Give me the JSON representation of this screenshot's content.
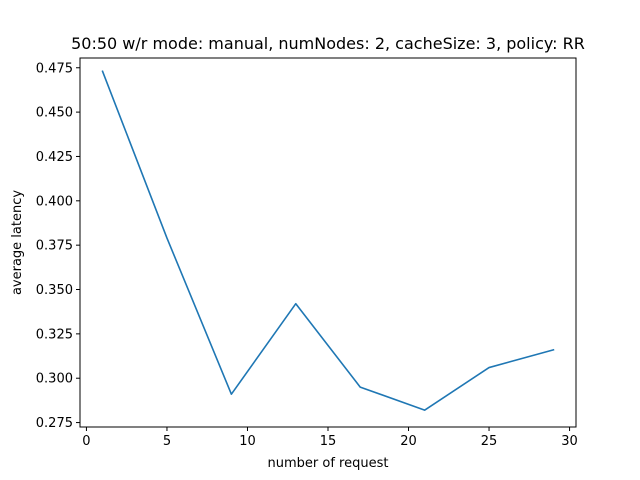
{
  "chart_data": {
    "type": "line",
    "title": "50:50 w/r mode: manual, numNodes: 2, cacheSize: 3, policy: RR",
    "xlabel": "number of request",
    "ylabel": "average latency",
    "xlim": [
      -0.4,
      30.4
    ],
    "ylim": [
      0.2725,
      0.4805
    ],
    "xticks": [
      0,
      5,
      10,
      15,
      20,
      25,
      30
    ],
    "yticks": [
      0.275,
      0.3,
      0.325,
      0.35,
      0.375,
      0.4,
      0.425,
      0.45,
      0.475
    ],
    "ytick_labels": [
      "0.275",
      "0.300",
      "0.325",
      "0.350",
      "0.375",
      "0.400",
      "0.425",
      "0.450",
      "0.475"
    ],
    "grid": false,
    "series": [
      {
        "color": "#1f77b4",
        "x": [
          1,
          5,
          9,
          13,
          17,
          21,
          25,
          29
        ],
        "y": [
          0.473,
          0.379,
          0.291,
          0.342,
          0.295,
          0.282,
          0.306,
          0.316
        ]
      }
    ]
  }
}
